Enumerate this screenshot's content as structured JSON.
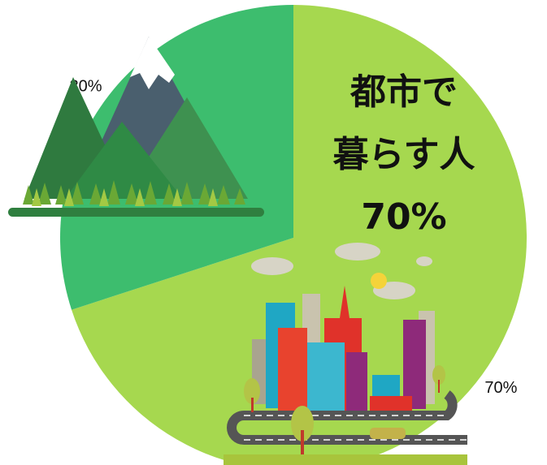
{
  "chart_data": {
    "type": "pie",
    "values": [
      70,
      30
    ],
    "value_labels": [
      "70%",
      "30%"
    ],
    "colors": [
      "#a6d84f",
      "#3dbd6e"
    ],
    "start_angle": 0,
    "direction": "clockwise",
    "annotation": [
      "都市で",
      "暮らす人",
      "70%"
    ]
  }
}
